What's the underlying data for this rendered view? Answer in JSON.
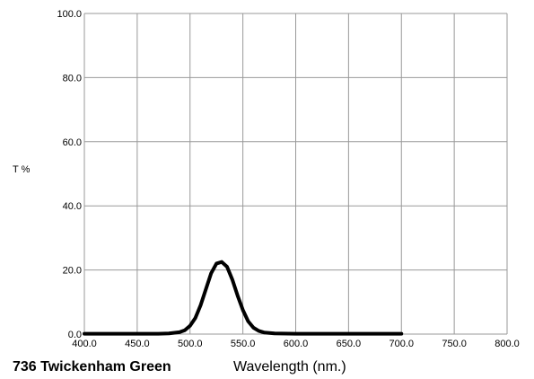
{
  "chart_data": {
    "type": "line",
    "title": "736 Twickenham Green",
    "xlabel": "Wavelength (nm.)",
    "ylabel": "T %",
    "xlim": [
      400,
      800
    ],
    "ylim": [
      0,
      100
    ],
    "x_ticks": [
      "400.0",
      "450.0",
      "500.0",
      "550.0",
      "600.0",
      "650.0",
      "700.0",
      "750.0",
      "800.0"
    ],
    "y_ticks": [
      "0.0",
      "20.0",
      "40.0",
      "60.0",
      "80.0",
      "100.0"
    ],
    "grid": true,
    "colors": {
      "grid": "#999999",
      "line": "#000000"
    },
    "series": [
      {
        "x": [
          400,
          450,
          470,
          480,
          490,
          495,
          500,
          505,
          510,
          515,
          520,
          525,
          530,
          535,
          540,
          545,
          550,
          555,
          560,
          565,
          570,
          580,
          600,
          650,
          700
        ],
        "y": [
          0.1,
          0.1,
          0.1,
          0.2,
          0.6,
          1.2,
          2.6,
          5.0,
          9.0,
          14.0,
          19.0,
          22.0,
          22.5,
          21.0,
          17.0,
          12.0,
          7.5,
          4.0,
          2.0,
          1.0,
          0.5,
          0.2,
          0.1,
          0.1,
          0.1
        ]
      }
    ]
  }
}
